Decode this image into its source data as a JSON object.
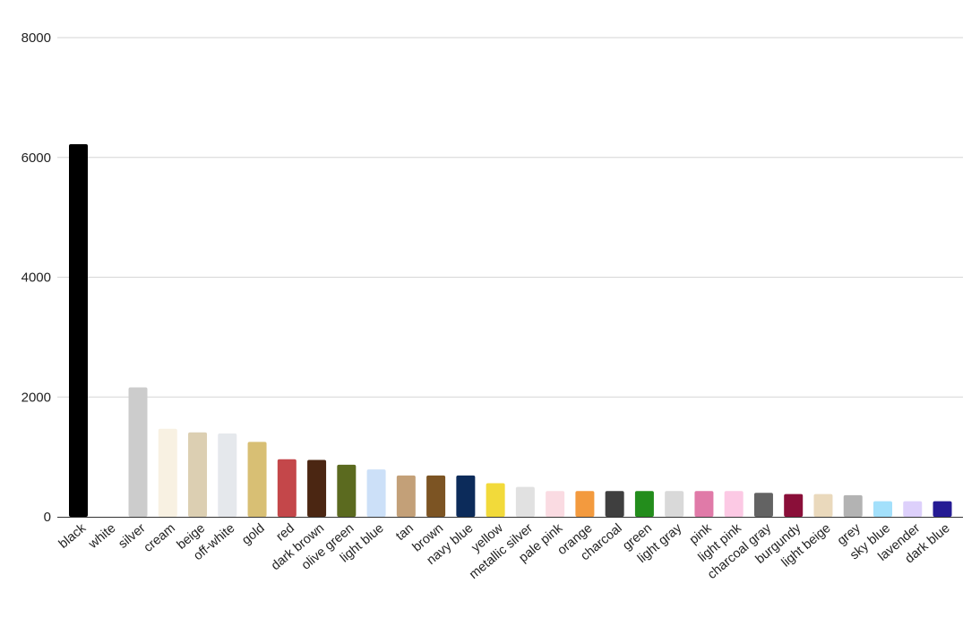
{
  "chart_data": {
    "type": "bar",
    "title": "",
    "xlabel": "",
    "ylabel": "",
    "ylim": [
      0,
      8000
    ],
    "yticks": [
      0,
      2000,
      4000,
      6000,
      8000
    ],
    "grid": true,
    "legend": "none",
    "categories": [
      "black",
      "white",
      "silver",
      "cream",
      "beige",
      "off-white",
      "gold",
      "red",
      "dark brown",
      "olive green",
      "light blue",
      "tan",
      "brown",
      "navy blue",
      "yellow",
      "metallic silver",
      "pale pink",
      "orange",
      "charcoal",
      "green",
      "light gray",
      "pink",
      "light pink",
      "charcoal gray",
      "burgundy",
      "light beige",
      "grey",
      "sky blue",
      "lavender",
      "dark blue"
    ],
    "values": [
      6220,
      0,
      2160,
      1470,
      1410,
      1390,
      1250,
      960,
      950,
      870,
      790,
      690,
      690,
      690,
      560,
      500,
      430,
      430,
      430,
      430,
      430,
      430,
      430,
      400,
      380,
      380,
      360,
      260,
      260,
      260
    ],
    "colors": [
      "#000000",
      "#ffffff",
      "#cccccc",
      "#f8f1e2",
      "#dccfb2",
      "#e5e8ec",
      "#d8bf74",
      "#c4474a",
      "#4b2612",
      "#5b6a1f",
      "#cce0f8",
      "#c3a078",
      "#7c5423",
      "#0c2b5a",
      "#f2da3a",
      "#e1e1e1",
      "#fadbe2",
      "#f39a3e",
      "#3f3f3f",
      "#238d1c",
      "#d9d9d9",
      "#e07aa8",
      "#fcc9e4",
      "#636363",
      "#8a0f39",
      "#ead9bc",
      "#b3b3b3",
      "#a3e0fb",
      "#ddd0fb",
      "#251b94"
    ]
  }
}
